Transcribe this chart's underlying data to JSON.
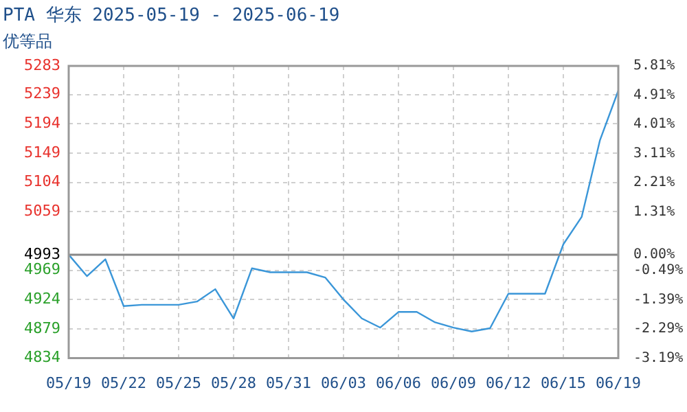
{
  "chart_data": {
    "type": "line",
    "title": "PTA 华东 2025-05-19 - 2025-06-19",
    "subtitle": "优等品",
    "categories": [
      "05/19",
      null,
      null,
      "05/22",
      null,
      null,
      "05/25",
      null,
      null,
      "05/28",
      null,
      null,
      "05/31",
      null,
      null,
      "06/03",
      null,
      null,
      "06/06",
      null,
      null,
      "06/09",
      null,
      null,
      "06/12",
      null,
      null,
      "06/15",
      null,
      null,
      "06/19"
    ],
    "series": [
      {
        "color": "#3a96d8",
        "values": [
          4993,
          4960,
          4986,
          4914,
          4916,
          4916,
          4916,
          4921,
          4940,
          4895,
          4972,
          4966,
          4966,
          4966,
          4958,
          4924,
          4895,
          4881,
          4905,
          4905,
          4889,
          4881,
          4875,
          4880,
          4933,
          4933,
          4933,
          5009,
          5051,
          5169,
          5245
        ]
      }
    ],
    "ylim": [
      4834,
      5283
    ],
    "yticks": [
      4834,
      4879,
      4924,
      4969,
      4993,
      5059,
      5104,
      5149,
      5194,
      5239,
      5283
    ],
    "y2lim": [
      -3.19,
      5.81
    ],
    "y2ticks": [
      {
        "value": -3.19,
        "label": "-3.19%"
      },
      {
        "value": -2.29,
        "label": "-2.29%"
      },
      {
        "value": -1.39,
        "label": "-1.39%"
      },
      {
        "value": -0.49,
        "label": "-0.49%"
      },
      {
        "value": 0,
        "label": "0.00%"
      },
      {
        "value": 1.31,
        "label": "1.31%"
      },
      {
        "value": 2.21,
        "label": "2.21%"
      },
      {
        "value": 3.11,
        "label": "3.11%"
      },
      {
        "value": 4.01,
        "label": "4.01%"
      },
      {
        "value": 4.91,
        "label": "4.91%"
      },
      {
        "value": 5.81,
        "label": "5.81%"
      }
    ],
    "ref_lines": [
      {
        "axis": "y",
        "value": 4993,
        "color": "#888888"
      }
    ],
    "grid": true,
    "legend": false,
    "marker": "none",
    "line_style": "solid"
  }
}
